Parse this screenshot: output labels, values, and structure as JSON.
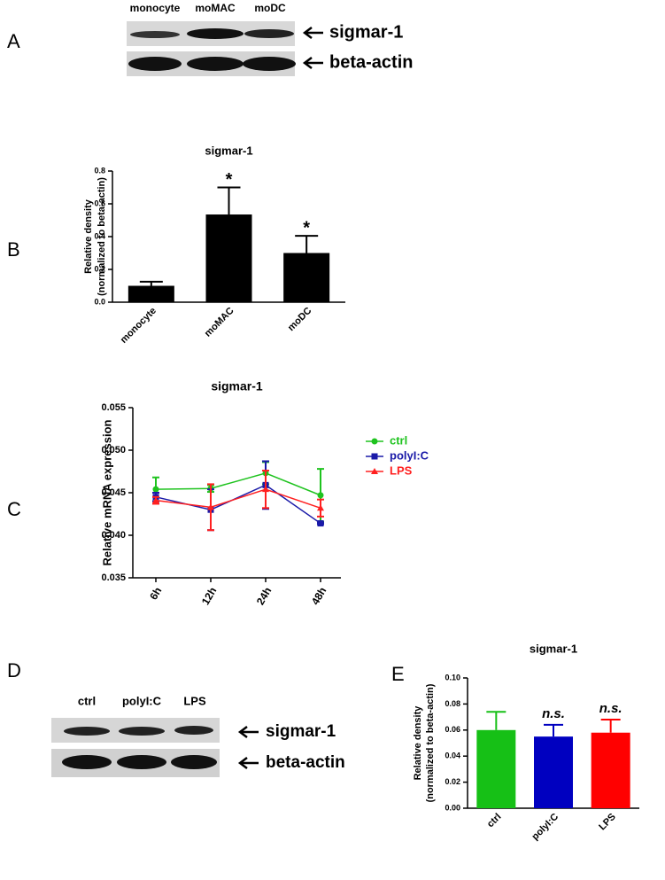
{
  "panel_letters": [
    "A",
    "B",
    "C",
    "D",
    "E"
  ],
  "blots": [
    {
      "lanes": [
        "monocyte",
        "moMAC",
        "moDC"
      ],
      "bands": [
        "sigmar-1",
        "beta-actin"
      ]
    },
    {
      "lanes": [
        "ctrl",
        "polyI:C",
        "LPS"
      ],
      "bands": [
        "sigmar-1",
        "beta-actin"
      ]
    }
  ],
  "chart_data": [
    {
      "type": "bar",
      "title": "sigmar-1",
      "y_label": [
        "Relative density",
        "(normalized to beta-actin)"
      ],
      "categories": [
        "monocyte",
        "moMAC",
        "moDC"
      ],
      "values": [
        0.1,
        0.535,
        0.3
      ],
      "errors": [
        0.025,
        0.165,
        0.105
      ],
      "colors": [
        "#000000",
        "#000000",
        "#000000"
      ],
      "annotations": [
        null,
        "*",
        "*"
      ],
      "ylim": [
        0,
        0.8
      ],
      "yticks": [
        {
          "value": 0,
          "label": "0.0"
        },
        0.2,
        0.4,
        0.6,
        0.8
      ]
    },
    {
      "type": "line",
      "title": "sigmar-1",
      "y_label": [
        "Relative mRNA expression"
      ],
      "categories": [
        "6h",
        "12h",
        "24h",
        "48h"
      ],
      "series": [
        {
          "name": "ctrl",
          "color": "#1fc31f",
          "marker": "circle",
          "values": [
            0.0454,
            0.0455,
            0.0473,
            0.0447
          ],
          "errors": [
            0.0014,
            0.0004,
            0.0013,
            0.0031
          ]
        },
        {
          "name": "polyI:C",
          "color": "#1a1aa8",
          "marker": "square",
          "values": [
            0.0445,
            0.043,
            0.0459,
            0.0414
          ],
          "errors": [
            0.0005,
            0.0024,
            0.0028,
            0.0001
          ]
        },
        {
          "name": "LPS",
          "color": "#ff2020",
          "marker": "triangle",
          "values": [
            0.0441,
            0.0433,
            0.0454,
            0.0432
          ],
          "errors": [
            0.0004,
            0.0027,
            0.0022,
            0.001
          ]
        }
      ],
      "ylim": [
        0.035,
        0.055
      ],
      "yticks": [
        0.035,
        {
          "value": 0.04,
          "label": "0.040"
        },
        0.045,
        {
          "value": 0.05,
          "label": "0.050"
        },
        0.055
      ]
    },
    {
      "type": "bar",
      "title": "sigmar-1",
      "y_label": [
        "Relative density",
        "(normalized to beta-actin)"
      ],
      "categories": [
        "ctrl",
        "polyI:C",
        "LPS"
      ],
      "values": [
        0.06,
        0.055,
        0.058
      ],
      "errors": [
        0.014,
        0.009,
        0.01
      ],
      "colors": [
        "#16c016",
        "#0000c0",
        "#ff0000"
      ],
      "annotations": [
        null,
        "n.s.",
        "n.s."
      ],
      "ylim": [
        0,
        0.1
      ],
      "yticks": [
        {
          "value": 0,
          "label": "0.00"
        },
        {
          "value": 0.02,
          "label": "0.02"
        },
        {
          "value": 0.04,
          "label": "0.04"
        },
        {
          "value": 0.06,
          "label": "0.06"
        },
        {
          "value": 0.08,
          "label": "0.08"
        },
        {
          "value": 0.1,
          "label": "0.10"
        }
      ]
    }
  ]
}
